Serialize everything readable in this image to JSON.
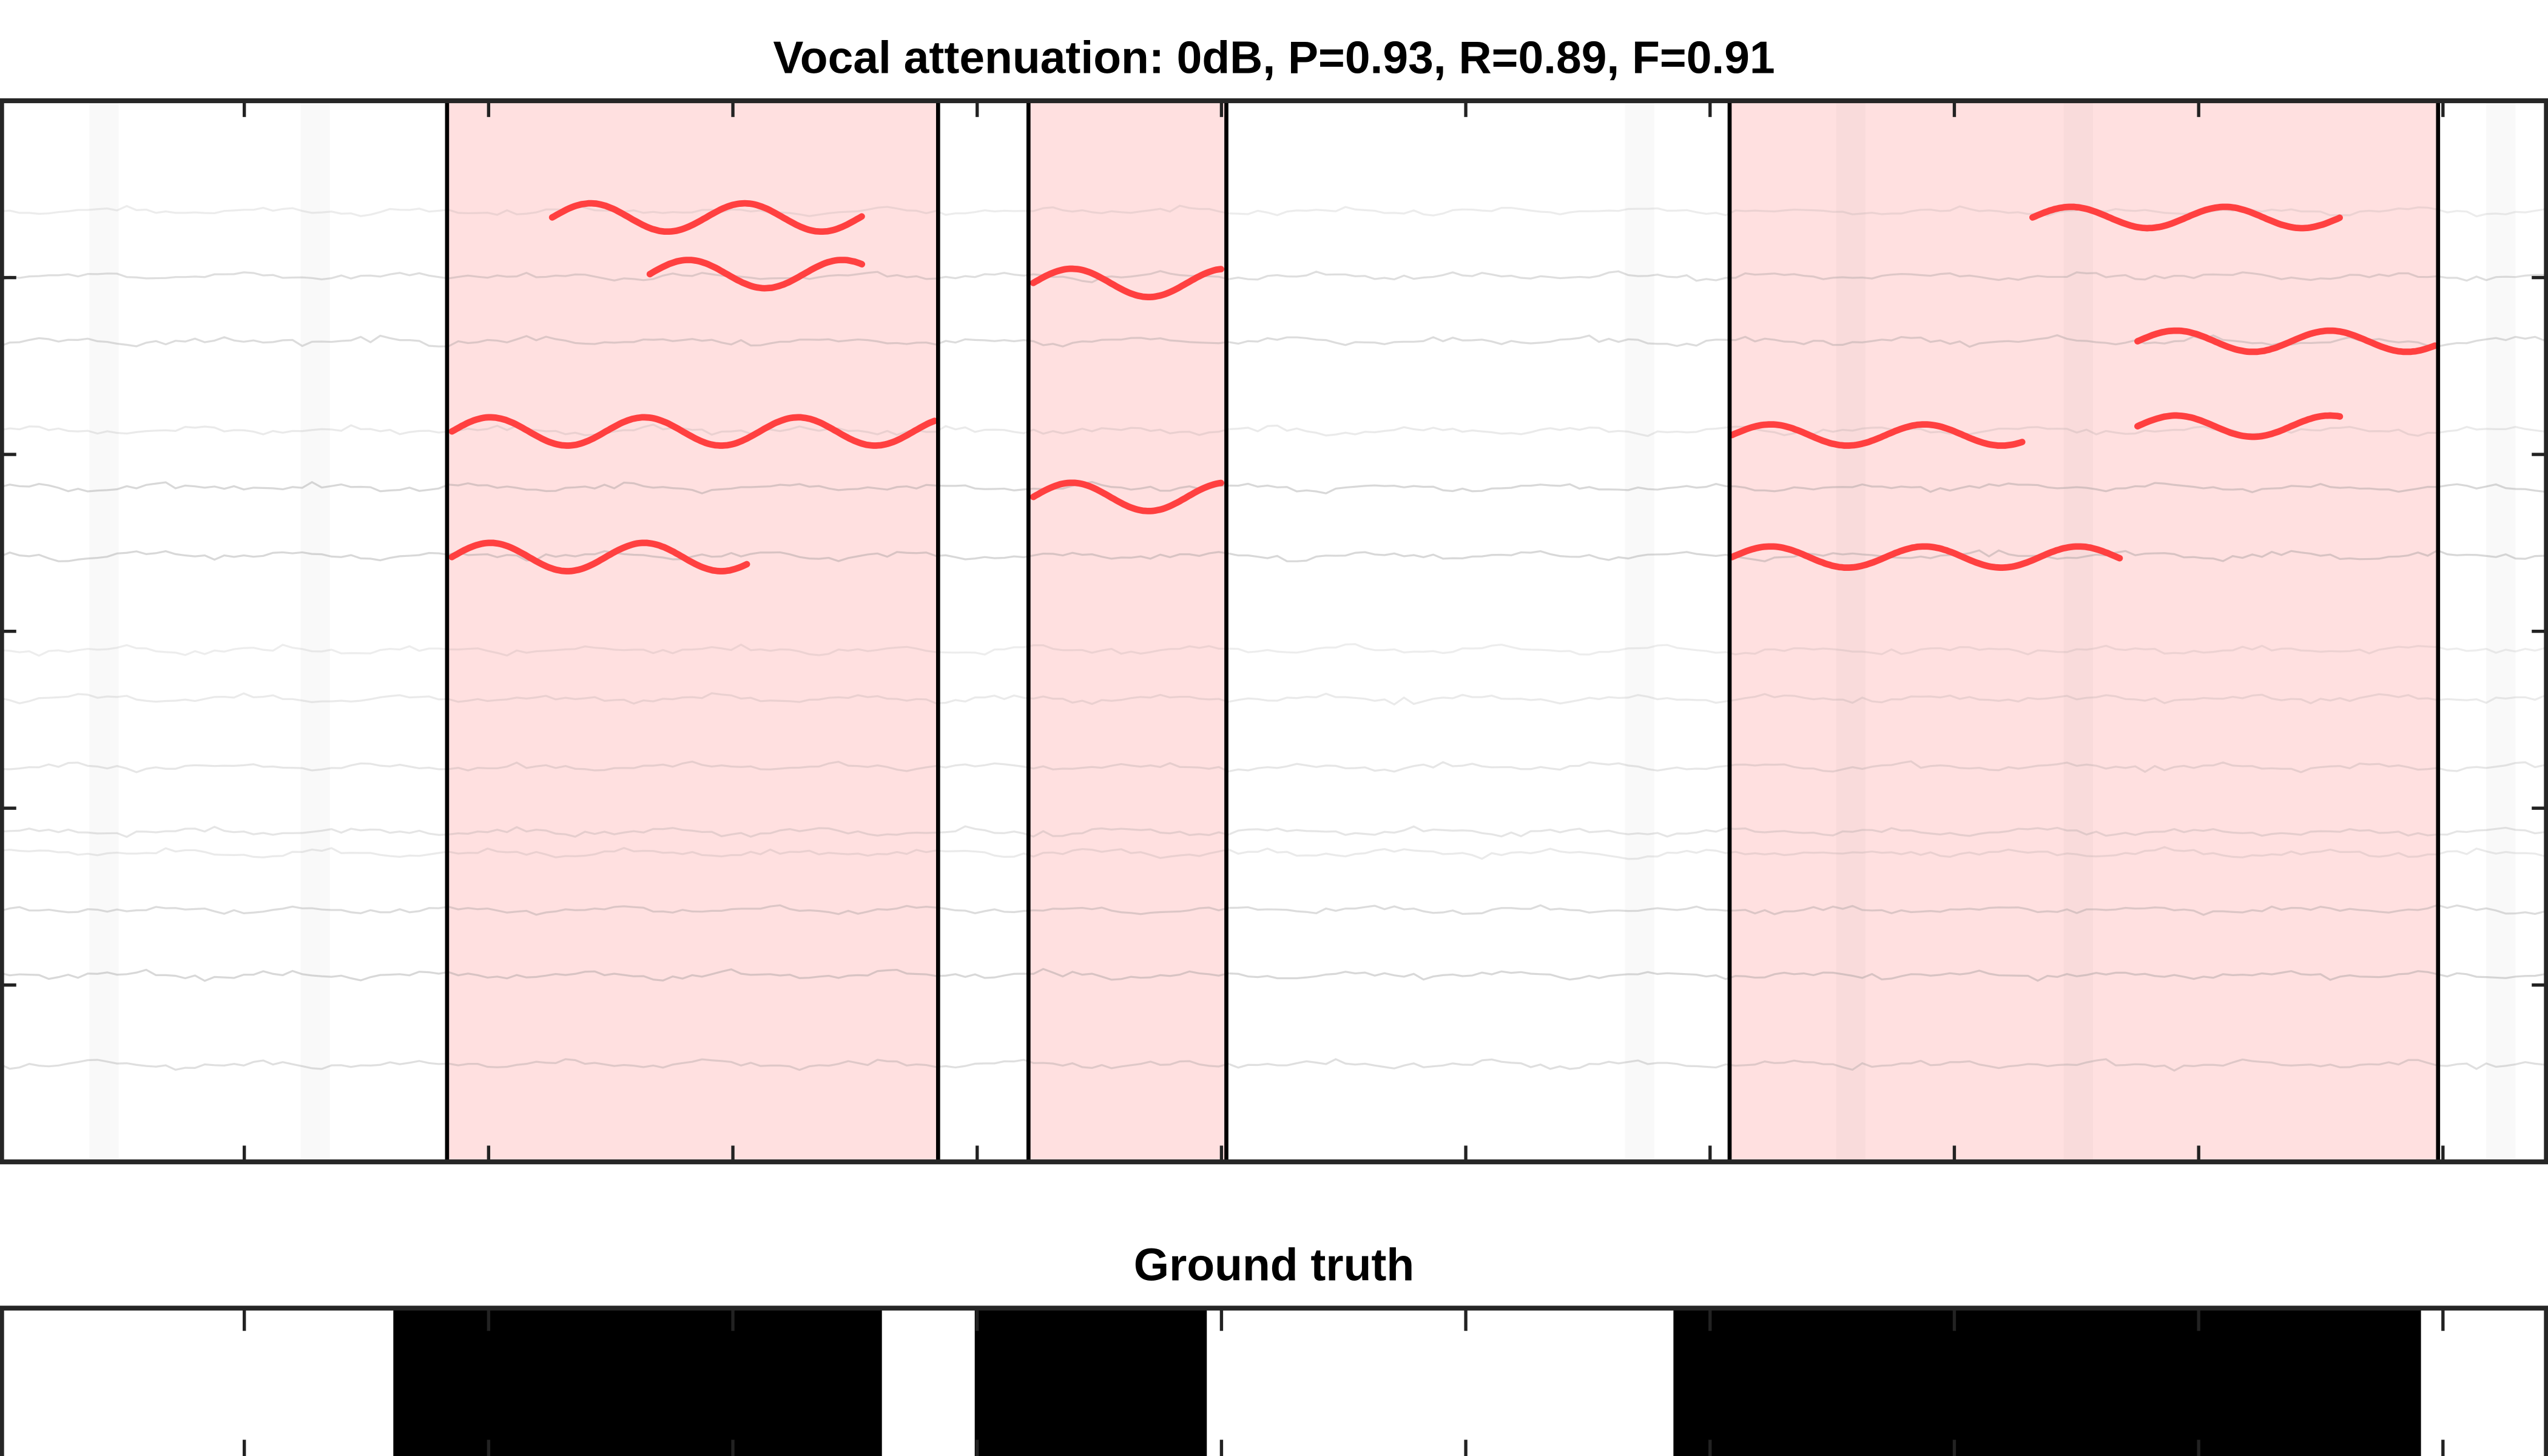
{
  "chart_data": [
    {
      "type": "heatmap",
      "title": "Vocal attenuation: 0dB, P=0.93, R=0.89, F=0.91",
      "description_of_marks": "spectrogram with predicted vocal segments shaded and detected vibrato pitch tracks",
      "xlim": [
        0,
        10.43
      ],
      "ylim": [
        0,
        6
      ],
      "x_ticks": [
        1,
        2,
        3,
        4,
        5,
        6,
        7,
        8,
        9,
        10
      ],
      "y_ticks": [
        1,
        2,
        3,
        4,
        5
      ],
      "tick_labels_shown": false,
      "grid": false,
      "predicted_segments": [
        [
          1.83,
          3.84
        ],
        [
          4.21,
          5.02
        ],
        [
          7.08,
          9.98
        ]
      ],
      "segment_color": "#ffe0e0",
      "track_color": "#ff4040",
      "pitch_tracks": [
        {
          "x": [
            2.26,
            3.53
          ],
          "y": 5.34,
          "vibrato_period": 0.63,
          "vibrato_depth": 0.08
        },
        {
          "x": [
            2.66,
            3.53
          ],
          "y": 5.02,
          "vibrato_period": 0.63,
          "vibrato_depth": 0.08
        },
        {
          "x": [
            1.85,
            3.83
          ],
          "y": 4.13,
          "vibrato_period": 0.63,
          "vibrato_depth": 0.08
        },
        {
          "x": [
            1.85,
            3.06
          ],
          "y": 3.42,
          "vibrato_period": 0.63,
          "vibrato_depth": 0.08
        },
        {
          "x": [
            4.23,
            5.0
          ],
          "y": 4.97,
          "vibrato_period": 0.63,
          "vibrato_depth": 0.08
        },
        {
          "x": [
            4.23,
            5.0
          ],
          "y": 3.76,
          "vibrato_period": 0.63,
          "vibrato_depth": 0.08
        },
        {
          "x": [
            8.32,
            9.58
          ],
          "y": 5.34,
          "vibrato_period": 0.63,
          "vibrato_depth": 0.06
        },
        {
          "x": [
            8.75,
            9.97
          ],
          "y": 4.64,
          "vibrato_period": 0.63,
          "vibrato_depth": 0.06
        },
        {
          "x": [
            7.09,
            8.28
          ],
          "y": 4.11,
          "vibrato_period": 0.63,
          "vibrato_depth": 0.06
        },
        {
          "x": [
            8.75,
            9.58
          ],
          "y": 4.16,
          "vibrato_period": 0.63,
          "vibrato_depth": 0.06
        },
        {
          "x": [
            7.09,
            8.68
          ],
          "y": 3.42,
          "vibrato_period": 0.63,
          "vibrato_depth": 0.06
        }
      ]
    },
    {
      "type": "bar",
      "title": "Ground truth",
      "xlim": [
        0,
        10.43
      ],
      "x_ticks": [
        1,
        2,
        3,
        4,
        5,
        6,
        7,
        8,
        9,
        10
      ],
      "tick_labels_shown": false,
      "segments": [
        [
          1.61,
          3.61
        ],
        [
          3.99,
          4.94
        ],
        [
          6.85,
          9.91
        ]
      ],
      "segment_color": "#000000"
    }
  ]
}
